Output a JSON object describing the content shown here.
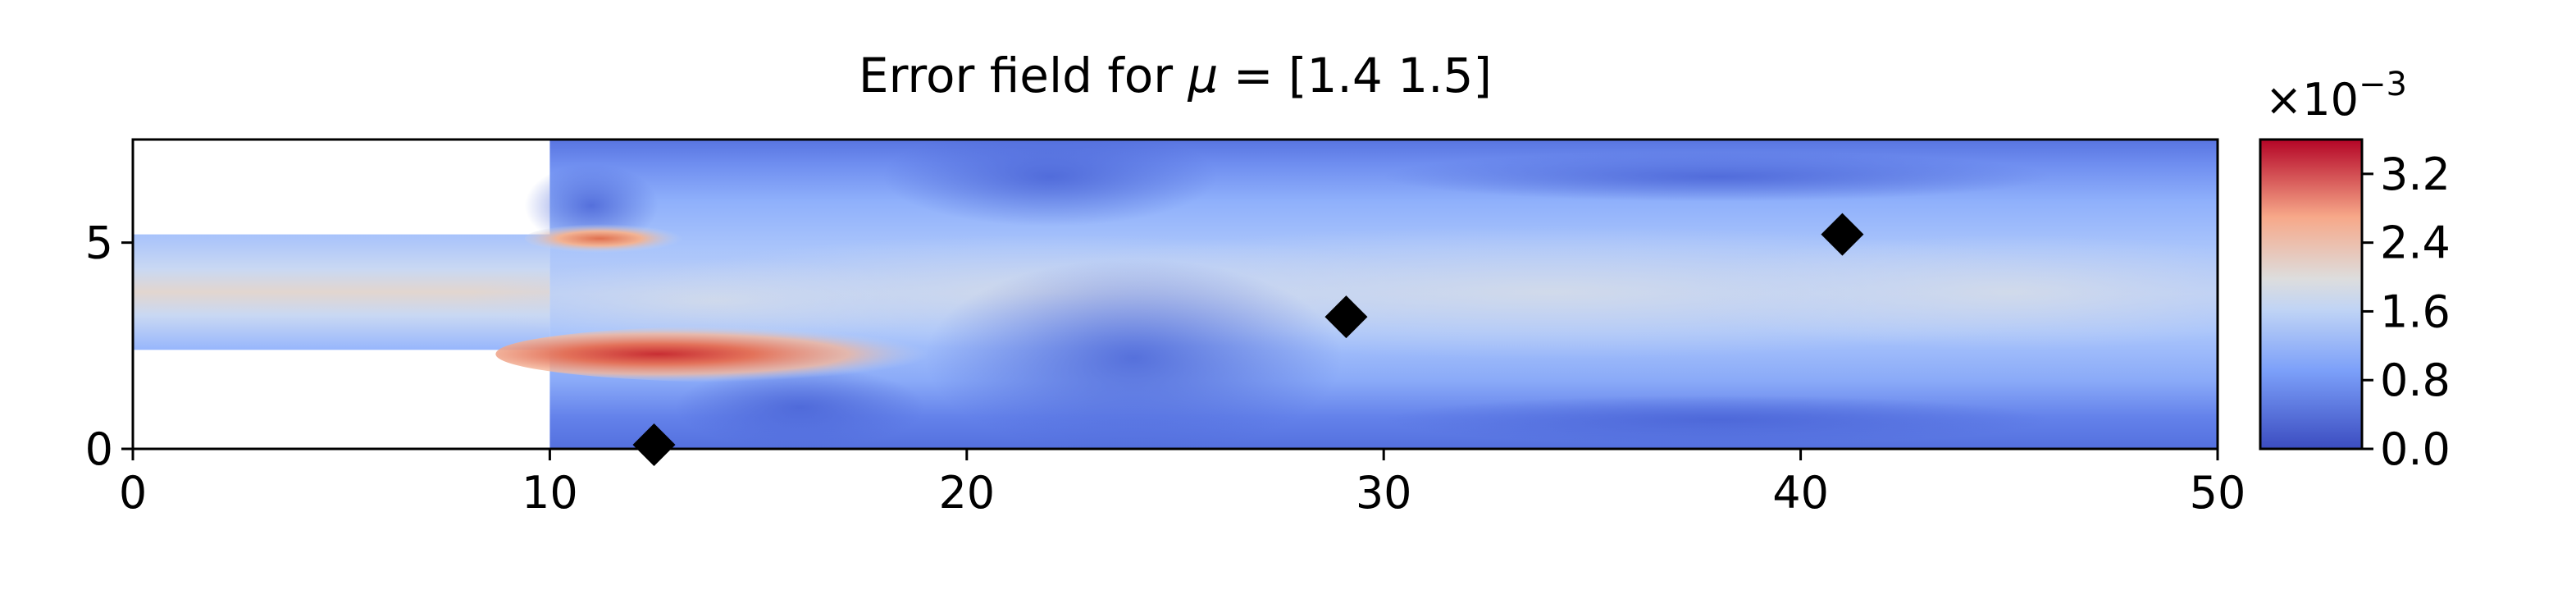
{
  "chart_data": {
    "type": "heatmap",
    "title": {
      "prefix": "Error field for ",
      "symbol": "μ",
      "suffix": " = [1.4 1.5]"
    },
    "xlim": [
      0,
      50
    ],
    "ylim": [
      0,
      7.5
    ],
    "x_ticks": [
      0,
      10,
      20,
      30,
      40,
      50
    ],
    "y_ticks": [
      0,
      5
    ],
    "domain": {
      "inlet_x": [
        0,
        10
      ],
      "inlet_y": [
        2.4,
        5.2
      ],
      "channel_x": [
        10,
        50
      ],
      "channel_y": [
        0,
        7.5
      ]
    },
    "colormap": "coolwarm",
    "colorbar": {
      "range": [
        0.0,
        3.6
      ],
      "tick_values": [
        0.0,
        0.8,
        1.6,
        2.4,
        3.2
      ],
      "tick_labels": [
        "0.0",
        "0.8",
        "1.6",
        "2.4",
        "3.2"
      ],
      "multiplier_base": "×10",
      "multiplier_exponent": "−3"
    },
    "markers": [
      {
        "x": 12.5,
        "y": 0.1
      },
      {
        "x": 29.1,
        "y": 3.2
      },
      {
        "x": 41.0,
        "y": 5.2
      }
    ],
    "colors": {
      "low": "#3b4cc0",
      "mid": "#dddddd",
      "high": "#b40426",
      "marker": "#000000"
    }
  }
}
